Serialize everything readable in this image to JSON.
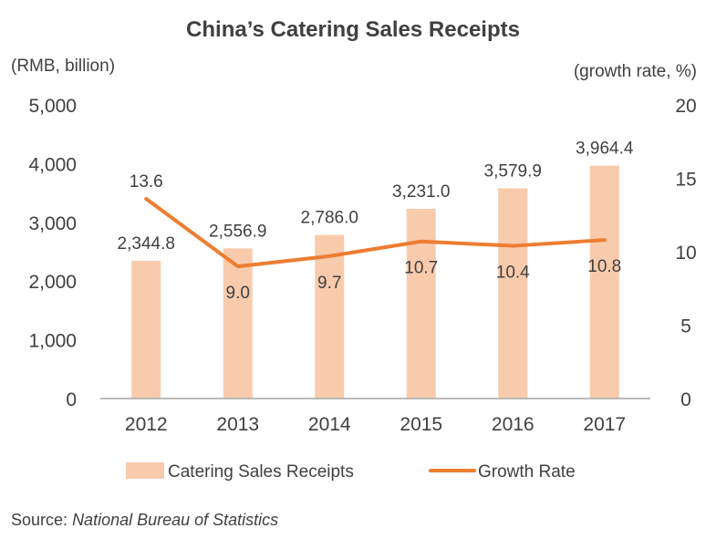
{
  "colors": {
    "bar": "#F8CBAD",
    "line": "#ED7D31",
    "axis": "#A6A6A6",
    "text": "#404040"
  },
  "source": {
    "label": "Source:",
    "name": "National Bureau of Statistics"
  },
  "chart_data": {
    "type": "bar",
    "title": "China’s Catering Sales Receipts",
    "ylabel": "(RMB, billion)",
    "y2label": "(growth rate, %)",
    "categories": [
      "2012",
      "2013",
      "2014",
      "2015",
      "2016",
      "2017"
    ],
    "ylim": [
      0,
      5000
    ],
    "y2lim": [
      0,
      20
    ],
    "yticks": [
      "0",
      "1,000",
      "2,000",
      "3,000",
      "4,000",
      "5,000"
    ],
    "y2ticks": [
      "0",
      "5",
      "10",
      "15",
      "20"
    ],
    "grid": false,
    "legend_position": "bottom",
    "series": [
      {
        "name": "Catering Sales Receipts",
        "type": "bar",
        "axis": "left",
        "values": [
          2344.8,
          2556.9,
          2786.0,
          3231.0,
          3579.9,
          3964.4
        ],
        "labels": [
          "2,344.8",
          "2,556.9",
          "2,786.0",
          "3,231.0",
          "3,579.9",
          "3,964.4"
        ]
      },
      {
        "name": "Growth Rate",
        "type": "line",
        "axis": "right",
        "values": [
          13.6,
          9.0,
          9.7,
          10.7,
          10.4,
          10.8
        ],
        "labels": [
          "13.6",
          "9.0",
          "9.7",
          "10.7",
          "10.4",
          "10.8"
        ]
      }
    ]
  }
}
